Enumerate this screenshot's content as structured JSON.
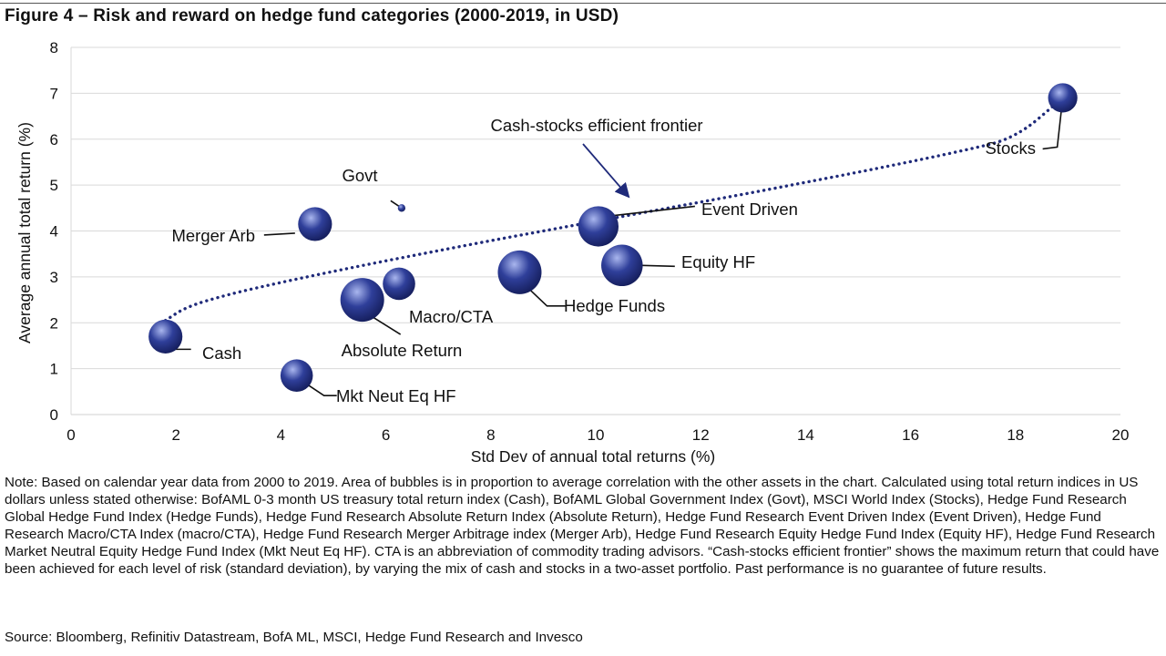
{
  "title": "Figure 4 – Risk and reward on hedge fund categories (2000-2019, in USD)",
  "colors": {
    "bubble": "#2f3f9a",
    "bubble_highlight": "#a9b6ee",
    "bubble_dark": "#121a55",
    "frontier": "#1f2a7a",
    "arrow": "#1f2a7a",
    "gridline": "#d9d9d9",
    "leader": "#111111"
  },
  "chart_data": {
    "type": "scatter",
    "title": "Figure 4 – Risk and reward on hedge fund categories (2000-2019, in USD)",
    "xlabel": "Std Dev of annual total returns (%)",
    "ylabel": "Average annual total return (%)",
    "xlim": [
      0,
      20
    ],
    "ylim": [
      0,
      8
    ],
    "x_ticks": [
      0,
      2,
      4,
      6,
      8,
      10,
      12,
      14,
      16,
      18,
      20
    ],
    "y_ticks": [
      0,
      1,
      2,
      3,
      4,
      5,
      6,
      7,
      8
    ],
    "grid": "horizontal",
    "bubble_size_meaning": "average correlation with the other assets",
    "points": [
      {
        "label": "Cash",
        "x": 1.8,
        "y": 1.7,
        "relative_size": 0.6
      },
      {
        "label": "Govt",
        "x": 6.3,
        "y": 4.5,
        "relative_size": 0.03
      },
      {
        "label": "Stocks",
        "x": 18.9,
        "y": 6.9,
        "relative_size": 0.45
      },
      {
        "label": "Merger Arb",
        "x": 4.65,
        "y": 4.15,
        "relative_size": 0.6
      },
      {
        "label": "Event Driven",
        "x": 10.05,
        "y": 4.1,
        "relative_size": 0.85
      },
      {
        "label": "Equity HF",
        "x": 10.5,
        "y": 3.25,
        "relative_size": 0.9
      },
      {
        "label": "Hedge Funds",
        "x": 8.55,
        "y": 3.1,
        "relative_size": 1.0
      },
      {
        "label": "Macro/CTA",
        "x": 6.25,
        "y": 2.85,
        "relative_size": 0.55
      },
      {
        "label": "Absolute Return",
        "x": 5.55,
        "y": 2.5,
        "relative_size": 1.0
      },
      {
        "label": "Mkt Neut Eq HF",
        "x": 4.3,
        "y": 0.85,
        "relative_size": 0.55
      }
    ],
    "frontier": {
      "name": "Cash-stocks efficient frontier",
      "style": "dotted",
      "x": [
        1.8,
        2.2,
        3.0,
        4.0,
        5.0,
        6.0,
        7.0,
        8.0,
        9.0,
        10.0,
        11.0,
        12.0,
        13.0,
        14.0,
        15.0,
        16.0,
        17.0,
        18.0,
        18.9
      ],
      "y": [
        2.05,
        2.35,
        2.62,
        2.88,
        3.12,
        3.35,
        3.57,
        3.79,
        4.0,
        4.21,
        4.42,
        4.63,
        4.84,
        5.06,
        5.28,
        5.51,
        5.75,
        6.02,
        6.9
      ]
    },
    "annotations": [
      {
        "text": "Cash-stocks efficient frontier",
        "points_to_x": 10.7,
        "points_to_y": 4.8
      }
    ]
  },
  "note": "Note: Based on calendar year data from 2000 to 2019. Area of bubbles is in proportion to average correlation with the other assets in the chart. Calculated using total return indices in US dollars unless stated otherwise: BofAML 0-3 month US treasury total return index (Cash), BofAML Global Government Index (Govt), MSCI World Index (Stocks), Hedge Fund Research Global Hedge Fund Index (Hedge Funds), Hedge Fund Research Absolute Return Index (Absolute Return), Hedge Fund Research Event Driven Index (Event Driven), Hedge Fund Research Macro/CTA Index (macro/CTA), Hedge Fund Research Merger Arbitrage index (Merger Arb), Hedge Fund Research Equity Hedge Fund Index (Equity HF), Hedge Fund Research Market Neutral Equity Hedge Fund Index (Mkt Neut Eq HF). CTA is an abbreviation of commodity trading advisors.  “Cash-stocks efficient frontier” shows the maximum return that could have been achieved for each level of risk (standard deviation), by varying the mix of cash and stocks in a two-asset portfolio. Past performance is no guarantee of future results.",
  "source": "Source: Bloomberg, Refinitiv Datastream, BofA ML, MSCI, Hedge Fund Research and Invesco"
}
